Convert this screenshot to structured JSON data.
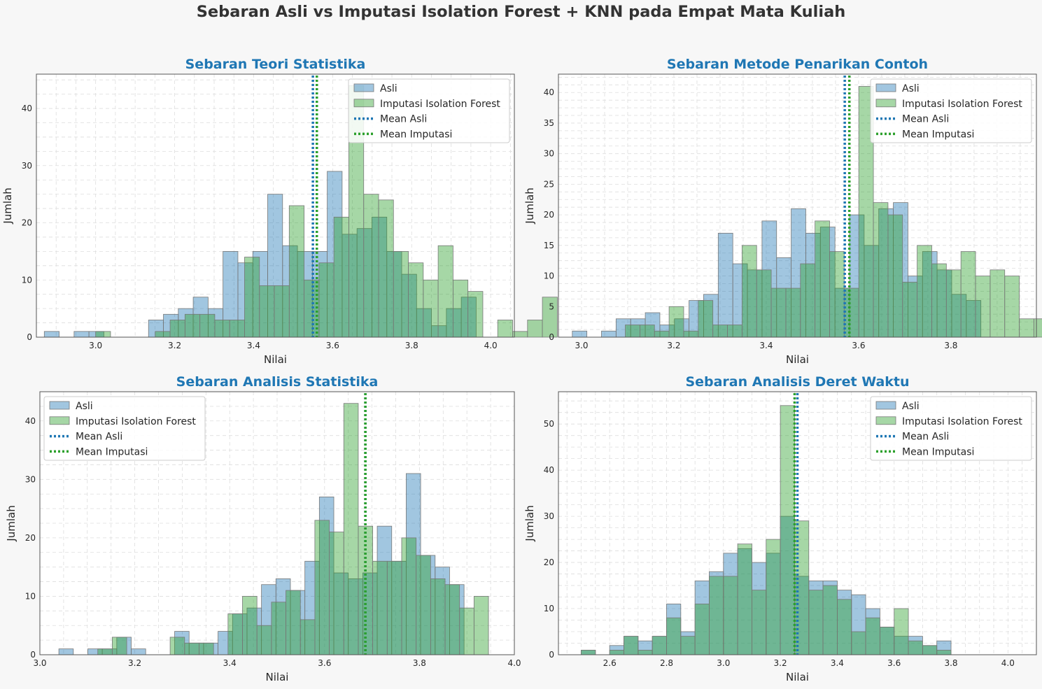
{
  "suptitle": "Sebaran Asli vs Imputasi Isolation Forest + KNN pada Empat Mata Kuliah",
  "colors": {
    "asli": "#1f77b4",
    "imputasi": "#2ca02c",
    "title": "#1f77b4",
    "text": "#333333",
    "background": "#f7f7f7",
    "axes_background": "#ffffff"
  },
  "chart_data": [
    {
      "type": "bar",
      "subtype": "histogram",
      "title": "Sebaran Teori Statistika",
      "xlabel": "Nilai",
      "ylabel": "Jumlah",
      "xlim": [
        2.85,
        4.06
      ],
      "ylim": [
        0,
        46
      ],
      "xticks": [
        3.0,
        3.2,
        3.4,
        3.6,
        3.8,
        4.0
      ],
      "yticks": [
        0,
        10,
        20,
        30,
        40
      ],
      "grid": true,
      "legend_position": "top-right",
      "legend": [
        "Asli",
        "Imputasi Isolation Forest",
        "Mean Asli",
        "Mean Imputasi"
      ],
      "series": [
        {
          "name": "Asli",
          "bin_start": 2.87,
          "bin_width": 0.0377,
          "values": [
            1,
            0,
            1,
            1,
            0,
            0,
            0,
            3,
            4,
            5,
            7,
            5,
            15,
            13,
            15,
            25,
            16,
            15,
            15,
            29,
            18,
            19,
            21,
            15,
            11,
            5,
            2,
            5,
            7
          ]
        },
        {
          "name": "Imputasi Isolation Forest",
          "bin_start": 3.0,
          "bin_width": 0.0377,
          "values": [
            1,
            0,
            0,
            0,
            1,
            3,
            4,
            4,
            3,
            3,
            14,
            9,
            9,
            23,
            10,
            13,
            21,
            44,
            25,
            24,
            15,
            13,
            10,
            16,
            10,
            8,
            0,
            3,
            1,
            3,
            7
          ]
        }
      ],
      "mean_lines": [
        {
          "name": "Mean Asli",
          "x": 3.55
        },
        {
          "name": "Mean Imputasi",
          "x": 3.56
        }
      ]
    },
    {
      "type": "bar",
      "subtype": "histogram",
      "title": "Sebaran Metode Penarikan Contoh",
      "xlabel": "Nilai",
      "ylabel": "Jumlah",
      "xlim": [
        2.95,
        3.985
      ],
      "ylim": [
        0,
        43
      ],
      "xticks": [
        3.0,
        3.2,
        3.4,
        3.6,
        3.8
      ],
      "yticks": [
        0,
        5,
        10,
        15,
        20,
        25,
        30,
        35,
        40
      ],
      "grid": true,
      "legend_position": "top-right",
      "legend": [
        "Asli",
        "Imputasi Isolation Forest",
        "Mean Asli",
        "Mean Imputasi"
      ],
      "series": [
        {
          "name": "Asli",
          "bin_start": 2.98,
          "bin_width": 0.0316,
          "values": [
            1,
            0,
            1,
            3,
            3,
            4,
            2,
            3,
            6,
            7,
            17,
            12,
            11,
            19,
            13,
            21,
            17,
            18,
            8,
            20,
            15,
            21,
            22,
            10,
            14,
            11,
            7,
            6
          ]
        },
        {
          "name": "Imputasi Isolation Forest",
          "bin_start": 3.0,
          "bin_width": 0.0316,
          "values": [
            0,
            0,
            0,
            2,
            2,
            1,
            5,
            1,
            6,
            2,
            2,
            15,
            11,
            8,
            8,
            12,
            19,
            14,
            8,
            41,
            22,
            20,
            9,
            15,
            12,
            11,
            14,
            10,
            11,
            10,
            3,
            3
          ]
        }
      ],
      "mean_lines": [
        {
          "name": "Mean Asli",
          "x": 3.57
        },
        {
          "name": "Mean Imputasi",
          "x": 3.58
        }
      ]
    },
    {
      "type": "bar",
      "subtype": "histogram",
      "title": "Sebaran Analisis Statistika",
      "xlabel": "Nilai",
      "ylabel": "Jumlah",
      "xlim": [
        3.0,
        4.0
      ],
      "ylim": [
        0,
        45
      ],
      "xticks": [
        3.0,
        3.2,
        3.4,
        3.6,
        3.8,
        4.0
      ],
      "yticks": [
        0,
        10,
        20,
        30,
        40
      ],
      "grid": true,
      "legend_position": "top-left",
      "legend": [
        "Asli",
        "Imputasi Isolation Forest",
        "Mean Asli",
        "Mean Imputasi"
      ],
      "series": [
        {
          "name": "Asli",
          "bin_start": 3.04,
          "bin_width": 0.0305,
          "values": [
            1,
            0,
            1,
            1,
            3,
            1,
            0,
            0,
            4,
            2,
            2,
            4,
            7,
            8,
            12,
            13,
            11,
            16,
            27,
            14,
            13,
            14,
            22,
            16,
            31,
            17,
            15,
            12
          ]
        },
        {
          "name": "Imputasi Isolation Forest",
          "bin_start": 3.0,
          "bin_width": 0.0305,
          "values": [
            0,
            0,
            0,
            0,
            1,
            3,
            0,
            0,
            0,
            3,
            2,
            2,
            0,
            7,
            10,
            5,
            9,
            11,
            6,
            23,
            21,
            43,
            22,
            16,
            16,
            20,
            17,
            13,
            12,
            8,
            10
          ]
        }
      ],
      "mean_lines": [
        {
          "name": "Mean Asli",
          "x": 3.686
        },
        {
          "name": "Mean Imputasi",
          "x": 3.686
        }
      ]
    },
    {
      "type": "bar",
      "subtype": "histogram",
      "title": "Sebaran Analisis Deret Waktu",
      "xlabel": "Nilai",
      "ylabel": "Jumlah",
      "xlim": [
        2.42,
        4.1
      ],
      "ylim": [
        0,
        57
      ],
      "xticks": [
        2.6,
        2.8,
        3.0,
        3.2,
        3.4,
        3.6,
        3.8,
        4.0
      ],
      "yticks": [
        0,
        10,
        20,
        30,
        40,
        50
      ],
      "grid": true,
      "legend_position": "top-right",
      "legend": [
        "Asli",
        "Imputasi Isolation Forest",
        "Mean Asli",
        "Mean Imputasi"
      ],
      "series": [
        {
          "name": "Asli",
          "bin_start": 2.5,
          "bin_width": 0.05,
          "values": [
            1,
            0,
            2,
            4,
            3,
            4,
            11,
            5,
            16,
            18,
            22,
            23,
            20,
            22,
            30,
            17,
            16,
            16,
            14,
            13,
            10,
            6,
            4,
            4,
            2,
            3
          ]
        },
        {
          "name": "Imputasi Isolation Forest",
          "bin_start": 2.5,
          "bin_width": 0.05,
          "values": [
            1,
            0,
            1,
            4,
            1,
            4,
            8,
            4,
            11,
            17,
            17,
            24,
            14,
            25,
            54,
            29,
            14,
            15,
            12,
            5,
            8,
            6,
            10,
            3,
            2,
            1
          ]
        }
      ],
      "mean_lines": [
        {
          "name": "Mean Asli",
          "x": 3.26
        },
        {
          "name": "Mean Imputasi",
          "x": 3.25
        }
      ]
    }
  ]
}
